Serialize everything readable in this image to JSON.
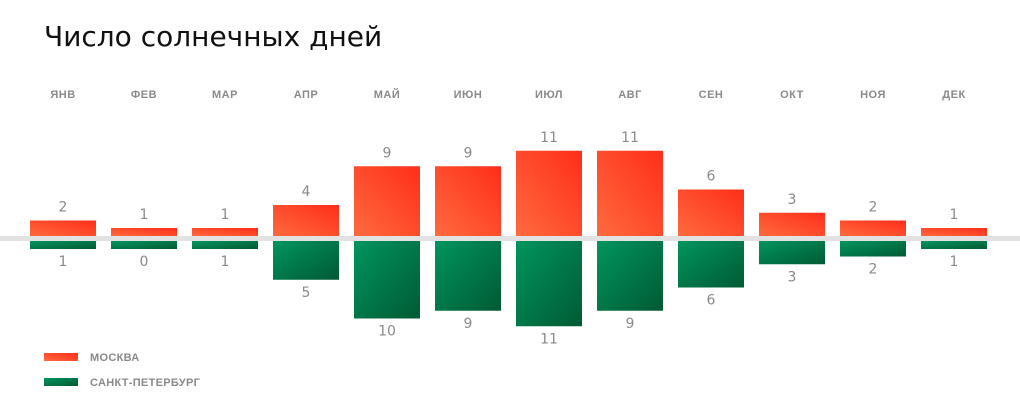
{
  "chart_data": {
    "type": "bar",
    "title": "Число солнечных дней",
    "categories": [
      "ЯНВ",
      "ФЕВ",
      "МАР",
      "АПР",
      "МАЙ",
      "ИЮН",
      "ИЮЛ",
      "АВГ",
      "СЕН",
      "ОКТ",
      "НОЯ",
      "ДЕК"
    ],
    "series": [
      {
        "name": "МОСКВА",
        "values": [
          2,
          1,
          1,
          4,
          9,
          9,
          11,
          11,
          6,
          3,
          2,
          1
        ],
        "color": "#ff4a26",
        "direction": "up"
      },
      {
        "name": "САНКТ-ПЕТЕРБУРГ",
        "values": [
          1,
          0,
          1,
          5,
          10,
          9,
          11,
          9,
          6,
          3,
          2,
          1
        ],
        "color": "#008a55",
        "direction": "down"
      }
    ],
    "ylim": [
      0,
      11
    ],
    "legend": "bottom-left",
    "grid": false
  },
  "colors": {
    "moscow_light": "#ff6a3d",
    "moscow_dark": "#ff2e1a",
    "spb_light": "#00955e",
    "spb_dark": "#005a33",
    "baseline": "#e2e2e2"
  }
}
